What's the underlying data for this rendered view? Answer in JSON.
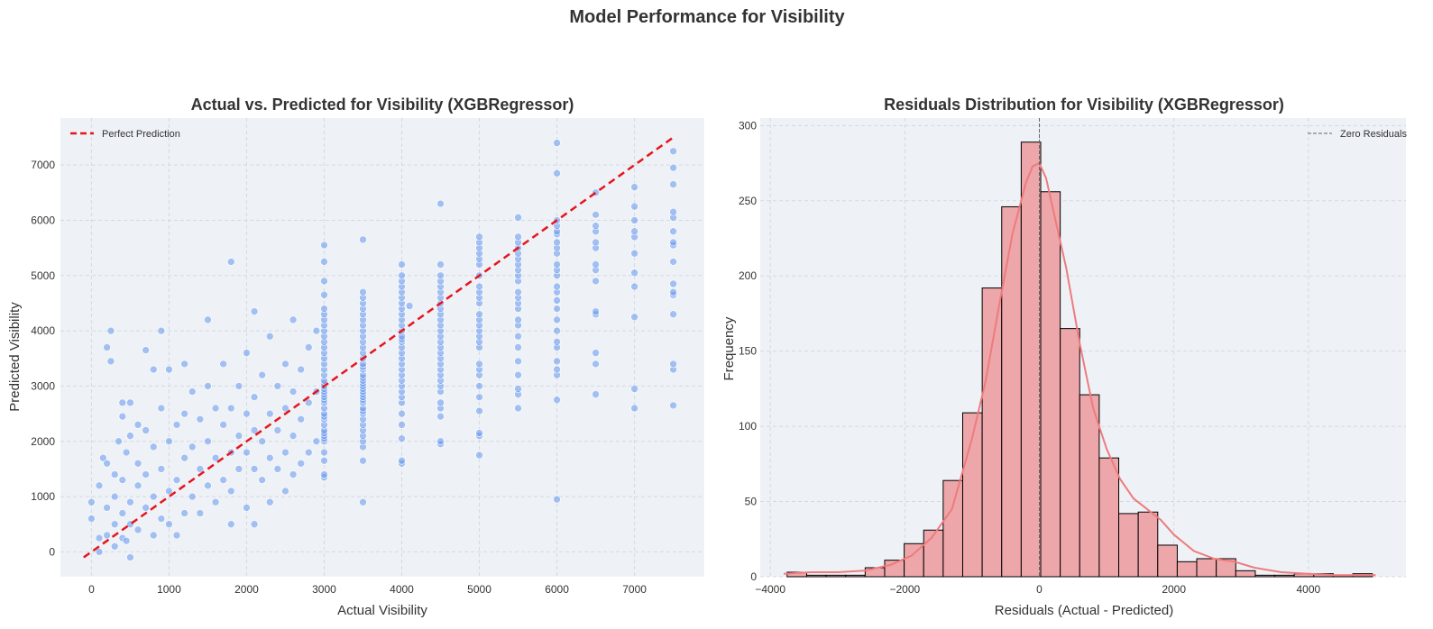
{
  "figure": {
    "suptitle": "Model Performance for Visibility"
  },
  "colors": {
    "panel_bg": "#eef2f7",
    "scatter_point": "#6495ed",
    "perfect_line": "#e8141c",
    "hist_fill": "#eda6a9",
    "hist_edge": "#000000",
    "kde_line": "#ef7b7d",
    "zero_line": "#666666"
  },
  "chart_data": [
    {
      "type": "scatter",
      "title": "Actual vs. Predicted for Visibility (XGBRegressor)",
      "xlabel": "Actual Visibility",
      "ylabel": "Predicted Visibility",
      "xlim": [
        -400,
        7900
      ],
      "ylim": [
        -450,
        7850
      ],
      "xticks": [
        0,
        1000,
        2000,
        3000,
        4000,
        5000,
        6000,
        7000
      ],
      "yticks": [
        0,
        1000,
        2000,
        3000,
        4000,
        5000,
        6000,
        7000
      ],
      "grid": true,
      "legend": {
        "position": "top-left",
        "entries": [
          {
            "label": "Perfect Prediction",
            "style": "red dashed line"
          }
        ]
      },
      "reference_line": {
        "name": "Perfect Prediction",
        "from": [
          -100,
          -100
        ],
        "to": [
          7500,
          7500
        ]
      },
      "point_groups": [
        {
          "x": 3000,
          "y_values": [
            1350,
            1400,
            1650,
            1800,
            2000,
            2050,
            2100,
            2150,
            2200,
            2300,
            2400,
            2450,
            2500,
            2600,
            2700,
            2750,
            2800,
            2850,
            2900,
            2950,
            3000,
            3050,
            3100,
            3200,
            3300,
            3400,
            3500,
            3600,
            3700,
            3800,
            3900,
            4000,
            4100,
            4200,
            4300,
            4400,
            4650,
            4900,
            5250,
            5550
          ]
        },
        {
          "x": 3500,
          "y_values": [
            900,
            1650,
            1900,
            2000,
            2100,
            2200,
            2300,
            2400,
            2500,
            2550,
            2600,
            2700,
            2750,
            2800,
            2850,
            2900,
            2950,
            3000,
            3050,
            3100,
            3150,
            3200,
            3300,
            3350,
            3400,
            3500,
            3600,
            3700,
            3800,
            3900,
            4000,
            4100,
            4200,
            4300,
            4400,
            4500,
            4600,
            4700,
            5650
          ]
        },
        {
          "x": 4000,
          "y_values": [
            1600,
            1650,
            2050,
            2300,
            2500,
            2700,
            2800,
            2900,
            3000,
            3100,
            3200,
            3300,
            3400,
            3500,
            3600,
            3700,
            3800,
            3850,
            3900,
            4000,
            4100,
            4200,
            4300,
            4400,
            4500,
            4600,
            4700,
            4800,
            4900,
            5000,
            5200
          ]
        },
        {
          "x": 4500,
          "y_values": [
            1950,
            2000,
            2450,
            2600,
            2700,
            2900,
            3000,
            3100,
            3200,
            3300,
            3400,
            3500,
            3600,
            3700,
            3800,
            3900,
            4000,
            4100,
            4200,
            4300,
            4400,
            4500,
            4600,
            4700,
            4800,
            4900,
            5000,
            5200,
            6300
          ]
        },
        {
          "x": 5000,
          "y_values": [
            1750,
            2100,
            2150,
            2550,
            2800,
            3000,
            3200,
            3300,
            3400,
            3700,
            3800,
            3900,
            4000,
            4100,
            4200,
            4300,
            4500,
            4600,
            4700,
            4800,
            5000,
            5200,
            5300,
            5400,
            5500,
            5600,
            5700
          ]
        },
        {
          "x": 5500,
          "y_values": [
            2600,
            2850,
            2950,
            3200,
            3450,
            3700,
            3900,
            4100,
            4200,
            4400,
            4500,
            4600,
            4700,
            4900,
            5000,
            5100,
            5200,
            5300,
            5400,
            5500,
            5600,
            5700,
            6050
          ]
        },
        {
          "x": 6000,
          "y_values": [
            950,
            2750,
            3200,
            3300,
            3450,
            3700,
            3800,
            4000,
            4200,
            4400,
            4550,
            4700,
            4800,
            5000,
            5100,
            5200,
            5400,
            5500,
            5600,
            5750,
            5800,
            5900,
            6000,
            6850,
            7400
          ]
        },
        {
          "x": 6500,
          "y_values": [
            2850,
            3400,
            3600,
            4300,
            4350,
            4900,
            5100,
            5200,
            5500,
            5600,
            5800,
            5900,
            6100,
            6500
          ]
        },
        {
          "x": 7000,
          "y_values": [
            2600,
            2950,
            4250,
            4800,
            5050,
            5400,
            5700,
            5800,
            6000,
            6250,
            6600
          ]
        },
        {
          "x": 7500,
          "y_values": [
            2650,
            3300,
            3400,
            4300,
            4650,
            4700,
            4850,
            5250,
            5550,
            5600,
            5800,
            6050,
            6150,
            6650,
            6950,
            7250
          ]
        }
      ],
      "low_range_points": [
        [
          0,
          600
        ],
        [
          0,
          900
        ],
        [
          100,
          0
        ],
        [
          100,
          250
        ],
        [
          100,
          1200
        ],
        [
          150,
          1700
        ],
        [
          200,
          300
        ],
        [
          200,
          800
        ],
        [
          200,
          1600
        ],
        [
          200,
          3700
        ],
        [
          250,
          3450
        ],
        [
          250,
          4000
        ],
        [
          300,
          100
        ],
        [
          300,
          500
        ],
        [
          300,
          1000
        ],
        [
          300,
          1400
        ],
        [
          350,
          2000
        ],
        [
          400,
          250
        ],
        [
          400,
          700
        ],
        [
          400,
          1300
        ],
        [
          400,
          2450
        ],
        [
          400,
          2700
        ],
        [
          450,
          200
        ],
        [
          450,
          1800
        ],
        [
          500,
          -100
        ],
        [
          500,
          500
        ],
        [
          500,
          900
        ],
        [
          500,
          2100
        ],
        [
          500,
          2700
        ],
        [
          600,
          400
        ],
        [
          600,
          1200
        ],
        [
          600,
          1600
        ],
        [
          600,
          2300
        ],
        [
          700,
          800
        ],
        [
          700,
          1400
        ],
        [
          700,
          2200
        ],
        [
          700,
          3650
        ],
        [
          800,
          300
        ],
        [
          800,
          1000
        ],
        [
          800,
          1900
        ],
        [
          800,
          3300
        ],
        [
          900,
          600
        ],
        [
          900,
          1500
        ],
        [
          900,
          2600
        ],
        [
          900,
          4000
        ],
        [
          1000,
          500
        ],
        [
          1000,
          1100
        ],
        [
          1000,
          2000
        ],
        [
          1000,
          3300
        ],
        [
          1100,
          300
        ],
        [
          1100,
          1300
        ],
        [
          1100,
          2300
        ],
        [
          1200,
          700
        ],
        [
          1200,
          1700
        ],
        [
          1200,
          2500
        ],
        [
          1200,
          3400
        ],
        [
          1300,
          1000
        ],
        [
          1300,
          1900
        ],
        [
          1300,
          2900
        ],
        [
          1400,
          700
        ],
        [
          1400,
          1500
        ],
        [
          1400,
          2400
        ],
        [
          1500,
          1200
        ],
        [
          1500,
          2000
        ],
        [
          1500,
          3000
        ],
        [
          1500,
          4200
        ],
        [
          1600,
          900
        ],
        [
          1600,
          1700
        ],
        [
          1600,
          2600
        ],
        [
          1700,
          1300
        ],
        [
          1700,
          2300
        ],
        [
          1700,
          3400
        ],
        [
          1800,
          500
        ],
        [
          1800,
          1100
        ],
        [
          1800,
          1800
        ],
        [
          1800,
          2600
        ],
        [
          1800,
          5250
        ],
        [
          1900,
          1500
        ],
        [
          1900,
          2100
        ],
        [
          1900,
          3000
        ],
        [
          2000,
          800
        ],
        [
          2000,
          1800
        ],
        [
          2000,
          2500
        ],
        [
          2000,
          3600
        ],
        [
          2100,
          500
        ],
        [
          2100,
          1500
        ],
        [
          2100,
          2200
        ],
        [
          2100,
          2800
        ],
        [
          2100,
          4350
        ],
        [
          2200,
          1300
        ],
        [
          2200,
          2000
        ],
        [
          2200,
          3200
        ],
        [
          2300,
          900
        ],
        [
          2300,
          1700
        ],
        [
          2300,
          2500
        ],
        [
          2300,
          3900
        ],
        [
          2400,
          1500
        ],
        [
          2400,
          2200
        ],
        [
          2400,
          3000
        ],
        [
          2500,
          1100
        ],
        [
          2500,
          1800
        ],
        [
          2500,
          2600
        ],
        [
          2500,
          3400
        ],
        [
          2600,
          1400
        ],
        [
          2600,
          2100
        ],
        [
          2600,
          2900
        ],
        [
          2600,
          4200
        ],
        [
          2700,
          1600
        ],
        [
          2700,
          2400
        ],
        [
          2700,
          3300
        ],
        [
          2800,
          1800
        ],
        [
          2800,
          2700
        ],
        [
          2800,
          3700
        ],
        [
          2900,
          2000
        ],
        [
          2900,
          2900
        ],
        [
          2900,
          4000
        ],
        [
          4100,
          4450
        ]
      ]
    },
    {
      "type": "bar",
      "subtype": "histogram with kde",
      "title": "Residuals Distribution for Visibility (XGBRegressor)",
      "xlabel": "Residuals (Actual - Predicted)",
      "ylabel": "Frequency",
      "xlim": [
        -4150,
        5450
      ],
      "ylim": [
        0,
        305
      ],
      "xticks": [
        -4000,
        -2000,
        0,
        2000,
        4000
      ],
      "xtick_labels": [
        "−4000",
        "−2000",
        "0",
        "2000",
        "4000"
      ],
      "yticks": [
        0,
        50,
        100,
        150,
        200,
        250,
        300
      ],
      "grid": true,
      "legend": {
        "position": "top-right",
        "entries": [
          {
            "label": "Zero Residuals",
            "style": "grey dashed line"
          }
        ]
      },
      "zero_line_x": 0,
      "bin_start": -3750,
      "bin_width": 290,
      "counts": [
        3,
        1,
        1,
        1,
        6,
        11,
        22,
        31,
        64,
        109,
        192,
        246,
        289,
        256,
        165,
        121,
        79,
        42,
        43,
        21,
        10,
        12,
        12,
        4,
        1,
        1,
        2,
        2,
        1,
        2
      ],
      "kde": {
        "x": [
          -3800,
          -3400,
          -3000,
          -2600,
          -2200,
          -1900,
          -1600,
          -1300,
          -1000,
          -800,
          -600,
          -400,
          -200,
          -100,
          0,
          100,
          200,
          400,
          600,
          800,
          1000,
          1200,
          1400,
          1600,
          1800,
          2000,
          2300,
          2600,
          2900,
          3200,
          3600,
          4000,
          4400,
          4800,
          5000
        ],
        "y": [
          2,
          3,
          3,
          4,
          8,
          14,
          26,
          45,
          92,
          130,
          180,
          228,
          262,
          273,
          275,
          265,
          245,
          205,
          155,
          112,
          85,
          65,
          52,
          45,
          38,
          28,
          17,
          12,
          10,
          6,
          3,
          2,
          1,
          1,
          1
        ]
      }
    }
  ]
}
